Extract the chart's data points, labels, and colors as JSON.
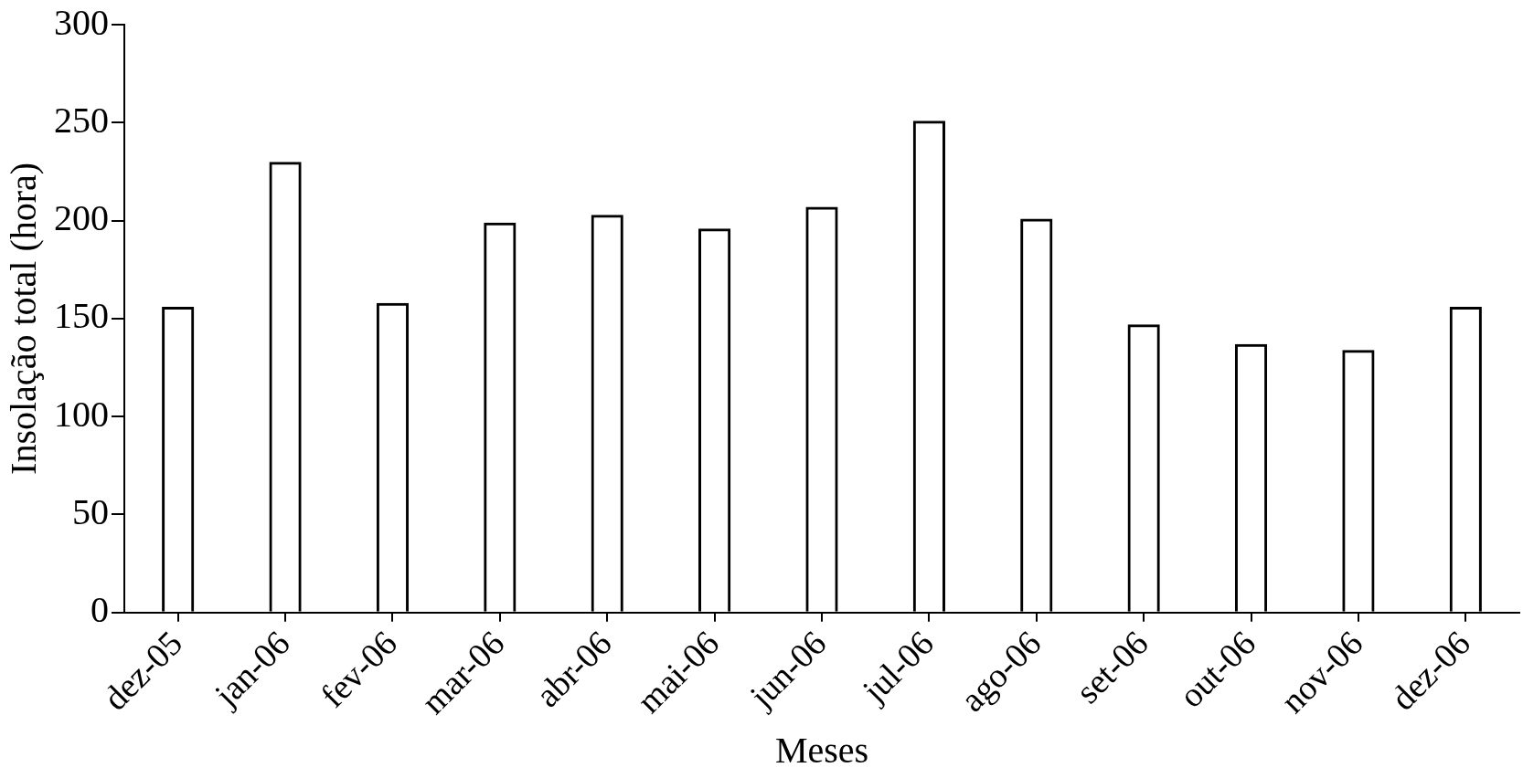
{
  "chart_data": {
    "type": "bar",
    "categories": [
      "dez-05",
      "jan-06",
      "fev-06",
      "mar-06",
      "abr-06",
      "mai-06",
      "jun-06",
      "jul-06",
      "ago-06",
      "set-06",
      "out-06",
      "nov-06",
      "dez-06"
    ],
    "values": [
      156,
      230,
      158,
      199,
      203,
      196,
      207,
      251,
      201,
      147,
      137,
      134,
      156
    ],
    "color": "#000000",
    "xlabel": "Meses",
    "ylabel": "Insolação total (hora)",
    "ylim": [
      0,
      300
    ],
    "yticks": [
      0,
      50,
      100,
      150,
      200,
      250,
      300
    ],
    "grid": false,
    "legend": false
  }
}
